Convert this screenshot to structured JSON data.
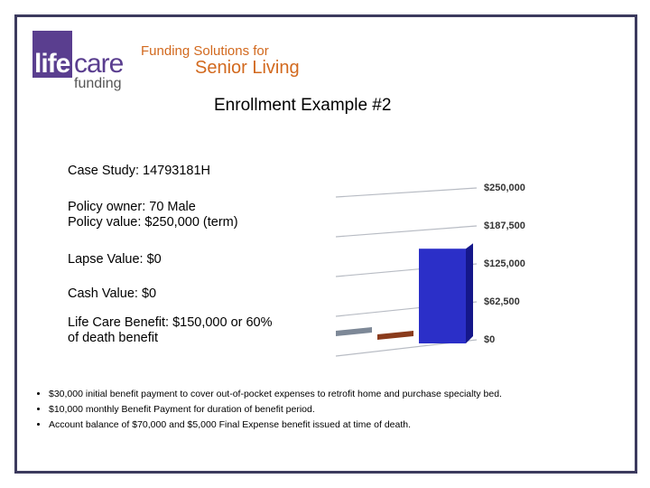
{
  "logo": {
    "life": "life",
    "care": "care",
    "funding": "funding",
    "tagline1": "Funding Solutions for",
    "tagline2": "Senior Living"
  },
  "title": "Enrollment Example #2",
  "case": {
    "study": "Case Study: 14793181H",
    "owner": "Policy owner: 70 Male",
    "value": "Policy value: $250,000 (term)",
    "lapse": "Lapse Value: $0",
    "cash": "Cash Value: $0",
    "benefit_bold": "Life Care Benefit: $150,000",
    "benefit_rest": " or 60%",
    "benefit_line2": "of death benefit"
  },
  "bullets": [
    "$30,000 initial benefit payment to cover out-of-pocket expenses to retrofit home and purchase specialty bed.",
    "$10,000 monthly Benefit Payment for duration of benefit period.",
    "Account balance of $70,000 and $5,000 Final Expense benefit issued at time of death."
  ],
  "chart_data": {
    "type": "bar",
    "categories": [
      null,
      null,
      null
    ],
    "values": [
      0,
      0,
      150000
    ],
    "colors": [
      "#7d8897",
      "#8a3b1c",
      "#2b2fc8"
    ],
    "ylim": [
      0,
      250000
    ],
    "yticks": [
      {
        "value": 0,
        "label": "$0"
      },
      {
        "value": 62500,
        "label": "$62,500"
      },
      {
        "value": 125000,
        "label": "$125,000"
      },
      {
        "value": 187500,
        "label": "$187,500"
      },
      {
        "value": 250000,
        "label": "$250,000"
      }
    ],
    "grid": true
  }
}
